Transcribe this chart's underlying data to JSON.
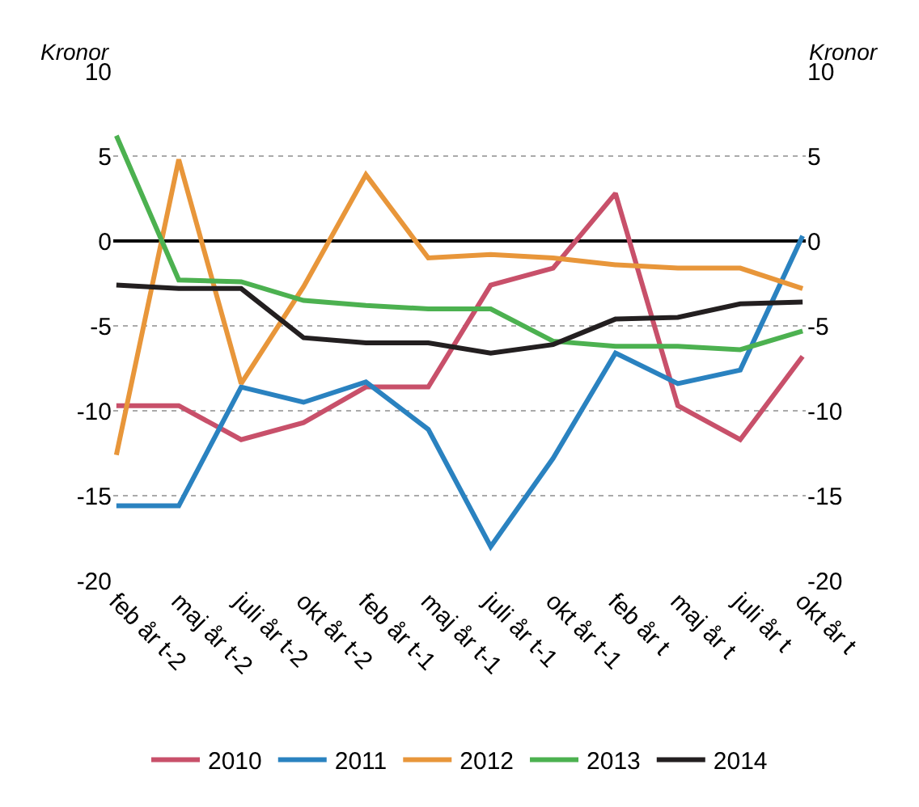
{
  "chart_data": {
    "type": "line",
    "ylabel": "Kronor",
    "y2label": "Kronor",
    "categories": [
      "feb år t-2",
      "maj år t-2",
      "juli år t-2",
      "okt år t-2",
      "feb år t-1",
      "maj år t-1",
      "juli år t-1",
      "okt år t-1",
      "feb år t",
      "maj år t",
      "juli år t",
      "okt år t"
    ],
    "series": [
      {
        "name": "2010",
        "color": "#c8506a",
        "values": [
          -9.7,
          -9.7,
          -11.7,
          -10.7,
          -8.6,
          -8.6,
          -2.6,
          -1.6,
          2.8,
          -9.7,
          -11.7,
          -6.8
        ]
      },
      {
        "name": "2011",
        "color": "#2a82c0",
        "values": [
          -15.6,
          -15.6,
          -8.6,
          -9.5,
          -8.3,
          -11.1,
          -18.0,
          -12.8,
          -6.6,
          -8.4,
          -7.6,
          0.3
        ]
      },
      {
        "name": "2012",
        "color": "#e8963a",
        "values": [
          -12.6,
          4.8,
          -8.4,
          -2.7,
          3.9,
          -1.0,
          -0.8,
          -1.0,
          -1.4,
          -1.6,
          -1.6,
          -2.8
        ]
      },
      {
        "name": "2013",
        "color": "#4cb150",
        "values": [
          6.2,
          -2.3,
          -2.4,
          -3.5,
          -3.8,
          -4.0,
          -4.0,
          -5.9,
          -6.2,
          -6.2,
          -6.4,
          -5.3
        ]
      },
      {
        "name": "2014",
        "color": "#231f20",
        "values": [
          -2.6,
          -2.8,
          -2.8,
          -5.7,
          -6.0,
          -6.0,
          -6.6,
          -6.1,
          -4.6,
          -4.5,
          -3.7,
          -3.6
        ]
      }
    ],
    "ylim": [
      -20,
      10
    ],
    "yticks": [
      -20,
      -15,
      -10,
      -5,
      0,
      5,
      10
    ],
    "y2lim": [
      -20,
      10
    ],
    "y2ticks": [
      -20,
      -15,
      -10,
      -5,
      0,
      5,
      10
    ],
    "grid": "y",
    "legend": "bottom",
    "marker": "none",
    "line_style": "solid"
  }
}
